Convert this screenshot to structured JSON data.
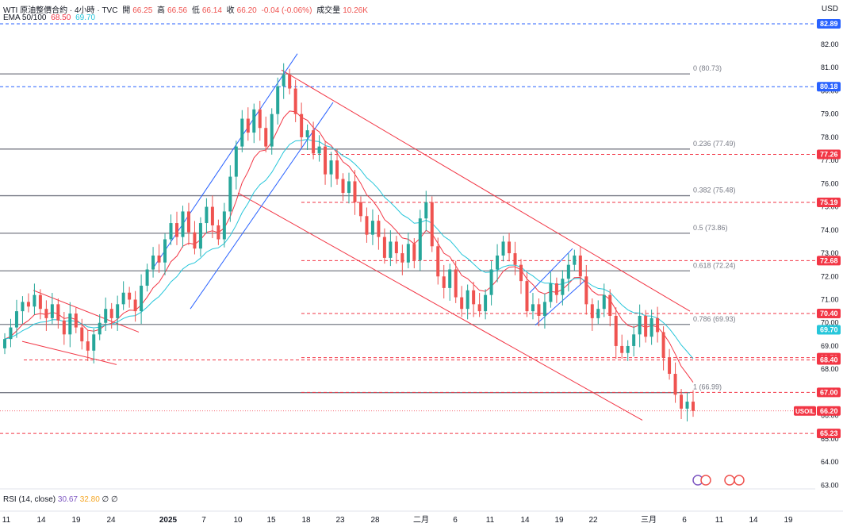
{
  "header": {
    "symbol_title": "WTI 原油整價合約 · 4小時 · TVC",
    "open_label": "開",
    "open": "66.25",
    "high_label": "高",
    "high": "66.56",
    "low_label": "低",
    "low": "66.14",
    "close_label": "收",
    "close": "66.20",
    "change": "-0.04 (-0.06%)",
    "volume_label": "成交量",
    "volume": "10.26K",
    "ema_label": "EMA 50/100",
    "ema50": "68.50",
    "ema100": "69.70"
  },
  "rsi": {
    "label": "RSI (14, close)",
    "v1": "30.67",
    "v2": "32.80",
    "v3": "∅",
    "v4": "∅"
  },
  "currency": "USD",
  "symbol_tag": "USOIL",
  "colors": {
    "up": "#ef5350",
    "down": "#26a69a",
    "ema50": "#f23645",
    "ema100": "#26c6da",
    "fib_line": "#787b86",
    "red_dash": "#f23645",
    "blue_dash": "#2962ff",
    "channel_red": "#f23645",
    "channel_blue": "#2962ff"
  },
  "chart_data": {
    "type": "candlestick",
    "y_range": [
      62.9,
      83.3
    ],
    "y_ticks": [
      "82.00",
      "81.00",
      "80.00",
      "79.00",
      "78.00",
      "77.00",
      "76.00",
      "75.00",
      "74.00",
      "73.00",
      "72.00",
      "71.00",
      "70.00",
      "69.00",
      "68.00",
      "67.00",
      "66.00",
      "65.00",
      "64.00",
      "63.00"
    ],
    "x_ticks": [
      "11",
      "14",
      "19",
      "24",
      "2025",
      "7",
      "10",
      "15",
      "18",
      "23",
      "28",
      "二月",
      "6",
      "11",
      "14",
      "19",
      "22",
      "三月",
      "6",
      "11",
      "14",
      "19"
    ],
    "price_badges": [
      {
        "value": 82.89,
        "label": "82.89",
        "style": "blue"
      },
      {
        "value": 80.18,
        "label": "80.18",
        "style": "blue"
      },
      {
        "value": 77.26,
        "label": "77.26",
        "style": "red"
      },
      {
        "value": 75.19,
        "label": "75.19",
        "style": "red"
      },
      {
        "value": 72.68,
        "label": "72.68",
        "style": "red"
      },
      {
        "value": 70.4,
        "label": "70.40",
        "style": "red"
      },
      {
        "value": 69.7,
        "label": "69.70",
        "style": "cyan"
      },
      {
        "value": 68.5,
        "label": "68.50",
        "style": "red"
      },
      {
        "value": 68.4,
        "label": "68.40",
        "style": "red"
      },
      {
        "value": 67.0,
        "label": "67.00",
        "style": "red"
      },
      {
        "value": 66.2,
        "label": "66.20",
        "style": "red"
      },
      {
        "value": 65.23,
        "label": "65.23",
        "style": "red"
      }
    ],
    "fib_levels": [
      {
        "value": 80.73,
        "label": "0 (80.73)"
      },
      {
        "value": 77.49,
        "label": "0.236 (77.49)"
      },
      {
        "value": 75.48,
        "label": "0.382 (75.48)"
      },
      {
        "value": 73.86,
        "label": "0.5 (73.86)"
      },
      {
        "value": 72.24,
        "label": "0.618 (72.24)"
      },
      {
        "value": 69.93,
        "label": "0.786 (69.93)"
      },
      {
        "value": 66.99,
        "label": "1 (66.99)"
      }
    ],
    "close_series": [
      69.3,
      69.8,
      70.5,
      70.9,
      70.7,
      71.2,
      70.6,
      70.2,
      70.8,
      70.1,
      69.5,
      70.4,
      69.8,
      69.2,
      68.8,
      69.5,
      70.0,
      70.6,
      70.2,
      70.8,
      71.3,
      71.0,
      70.5,
      71.6,
      72.3,
      72.9,
      72.6,
      73.6,
      74.3,
      73.7,
      74.8,
      73.9,
      73.2,
      74.3,
      75.0,
      74.2,
      73.6,
      74.8,
      76.3,
      77.6,
      78.8,
      78.2,
      79.2,
      78.4,
      77.6,
      79.0,
      80.2,
      80.7,
      80.1,
      79.0,
      78.0,
      78.3,
      77.3,
      77.6,
      76.4,
      77.0,
      76.2,
      75.6,
      76.1,
      75.2,
      74.6,
      73.8,
      74.4,
      73.7,
      72.8,
      73.5,
      73.0,
      72.6,
      73.4,
      72.7,
      74.5,
      75.2,
      73.3,
      72.0,
      71.5,
      72.3,
      71.1,
      70.6,
      71.4,
      70.8,
      70.5,
      71.2,
      72.3,
      72.9,
      73.5,
      73.0,
      72.5,
      71.8,
      70.5,
      70.8,
      70.3,
      70.9,
      71.7,
      71.2,
      71.9,
      72.5,
      72.9,
      72.0,
      70.8,
      70.2,
      70.6,
      71.2,
      70.3,
      69.0,
      68.7,
      69.0,
      69.5,
      70.3,
      69.4,
      70.2,
      69.6,
      68.5,
      67.8,
      66.9,
      66.3,
      66.6,
      66.2
    ]
  }
}
